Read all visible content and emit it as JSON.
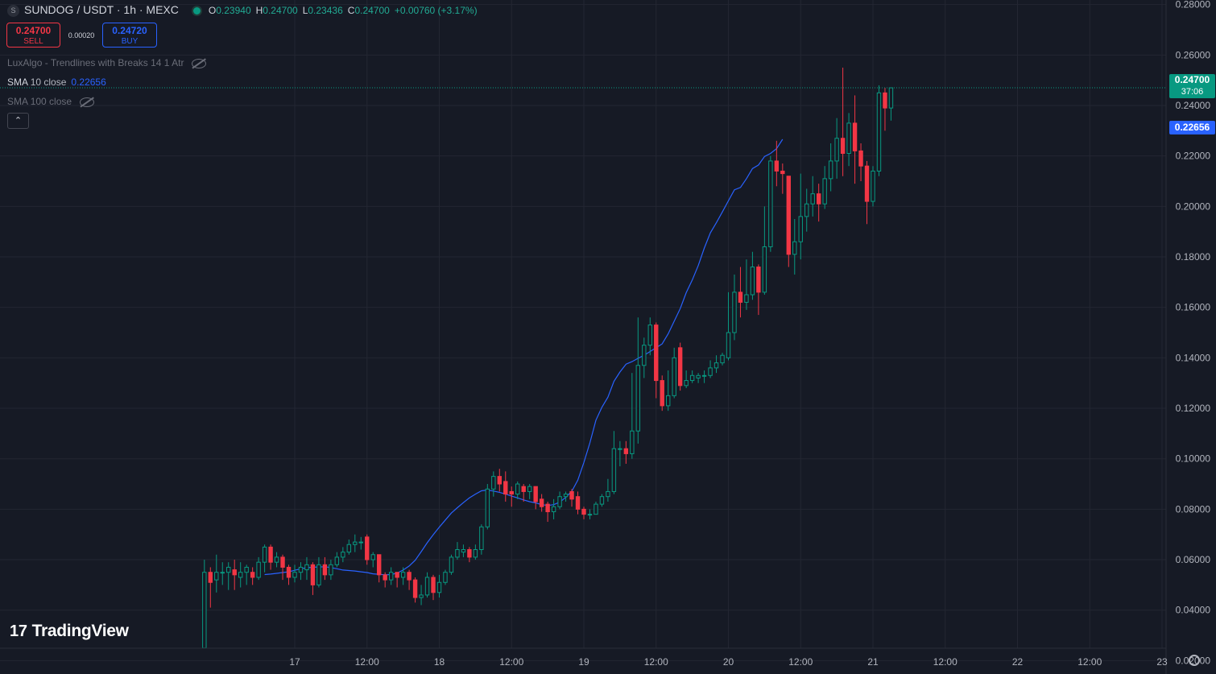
{
  "header": {
    "symbol_icon": "S",
    "title": "SUNDOG / USDT · 1h · MEXC",
    "status_color": "#089981",
    "ohlc": {
      "o_label": "O",
      "o": "0.23940",
      "h_label": "H",
      "h": "0.24700",
      "l_label": "L",
      "l": "0.23436",
      "c_label": "C",
      "c": "0.24700",
      "change": "+0.00760 (+3.17%)"
    }
  },
  "trade": {
    "sell_price": "0.24700",
    "sell_label": "SELL",
    "spread": "0.00020",
    "buy_price": "0.24720",
    "buy_label": "BUY"
  },
  "indicators": [
    {
      "name": "LuxAlgo - Trendlines with Breaks 14 1 Atr",
      "value": "",
      "hidden": true,
      "icon": "eye-off-icon"
    },
    {
      "name": "SMA",
      "params": "10 close",
      "value": "0.22656",
      "hidden": false
    },
    {
      "name": "SMA",
      "params": "100 close",
      "value": "",
      "hidden": true,
      "icon": "eye-off-icon"
    }
  ],
  "collapse_icon": "chevron-up-icon",
  "branding": {
    "logo_text": "TradingView",
    "logo_mark": "17"
  },
  "price_labels": {
    "last_price": "0.24700",
    "countdown": "37:06",
    "sma": "0.22656",
    "last_color": "#089981",
    "sma_color": "#2962ff"
  },
  "settings_icon": "gear-icon",
  "chart_data": {
    "type": "candlestick",
    "x_ticks": [
      "17",
      "12:00",
      "18",
      "12:00",
      "19",
      "12:00",
      "20",
      "12:00",
      "21",
      "12:00",
      "22",
      "12:00",
      "23"
    ],
    "y_ticks": [
      "0.28000",
      "0.26000",
      "0.24000",
      "0.22000",
      "0.20000",
      "0.18000",
      "0.16000",
      "0.14000",
      "0.12000",
      "0.10000",
      "0.08000",
      "0.06000",
      "0.04000",
      "0.02000"
    ],
    "ylim": [
      0.0147,
      0.2818
    ],
    "up_color": "#089981",
    "down_color": "#f23645",
    "sma_color": "#2962ff",
    "grid": true,
    "candles": [
      [
        0.025,
        0.055,
        0.025,
        0.06
      ],
      [
        0.055,
        0.051,
        0.041,
        0.057
      ],
      [
        0.052,
        0.055,
        0.047,
        0.062
      ],
      [
        0.055,
        0.055,
        0.05,
        0.059
      ],
      [
        0.055,
        0.057,
        0.048,
        0.059
      ],
      [
        0.056,
        0.054,
        0.048,
        0.06
      ],
      [
        0.053,
        0.055,
        0.049,
        0.059
      ],
      [
        0.055,
        0.057,
        0.05,
        0.058
      ],
      [
        0.055,
        0.053,
        0.05,
        0.057
      ],
      [
        0.053,
        0.059,
        0.052,
        0.061
      ],
      [
        0.059,
        0.065,
        0.055,
        0.066
      ],
      [
        0.065,
        0.059,
        0.056,
        0.066
      ],
      [
        0.059,
        0.061,
        0.057,
        0.063
      ],
      [
        0.061,
        0.057,
        0.052,
        0.062
      ],
      [
        0.057,
        0.053,
        0.05,
        0.058
      ],
      [
        0.053,
        0.055,
        0.051,
        0.058
      ],
      [
        0.055,
        0.057,
        0.052,
        0.059
      ],
      [
        0.056,
        0.058,
        0.052,
        0.061
      ],
      [
        0.058,
        0.05,
        0.046,
        0.059
      ],
      [
        0.05,
        0.058,
        0.049,
        0.061
      ],
      [
        0.058,
        0.054,
        0.052,
        0.061
      ],
      [
        0.054,
        0.058,
        0.052,
        0.06
      ],
      [
        0.058,
        0.061,
        0.057,
        0.063
      ],
      [
        0.061,
        0.063,
        0.059,
        0.065
      ],
      [
        0.063,
        0.066,
        0.062,
        0.068
      ],
      [
        0.066,
        0.067,
        0.063,
        0.07
      ],
      [
        0.067,
        0.067,
        0.064,
        0.069
      ],
      [
        0.069,
        0.06,
        0.058,
        0.07
      ],
      [
        0.06,
        0.062,
        0.057,
        0.063
      ],
      [
        0.062,
        0.054,
        0.051,
        0.062
      ],
      [
        0.054,
        0.052,
        0.049,
        0.055
      ],
      [
        0.052,
        0.055,
        0.05,
        0.057
      ],
      [
        0.055,
        0.053,
        0.049,
        0.055
      ],
      [
        0.053,
        0.055,
        0.05,
        0.057
      ],
      [
        0.055,
        0.052,
        0.048,
        0.056
      ],
      [
        0.052,
        0.045,
        0.043,
        0.053
      ],
      [
        0.045,
        0.046,
        0.042,
        0.05
      ],
      [
        0.046,
        0.053,
        0.045,
        0.055
      ],
      [
        0.053,
        0.047,
        0.044,
        0.054
      ],
      [
        0.047,
        0.051,
        0.045,
        0.054
      ],
      [
        0.051,
        0.055,
        0.05,
        0.056
      ],
      [
        0.055,
        0.061,
        0.054,
        0.062
      ],
      [
        0.061,
        0.064,
        0.06,
        0.067
      ],
      [
        0.063,
        0.064,
        0.061,
        0.066
      ],
      [
        0.064,
        0.061,
        0.059,
        0.065
      ],
      [
        0.061,
        0.064,
        0.06,
        0.066
      ],
      [
        0.064,
        0.073,
        0.062,
        0.074
      ],
      [
        0.073,
        0.088,
        0.072,
        0.09
      ],
      [
        0.088,
        0.093,
        0.085,
        0.095
      ],
      [
        0.093,
        0.09,
        0.087,
        0.096
      ],
      [
        0.091,
        0.086,
        0.083,
        0.095
      ],
      [
        0.087,
        0.086,
        0.081,
        0.089
      ],
      [
        0.086,
        0.09,
        0.084,
        0.091
      ],
      [
        0.089,
        0.087,
        0.083,
        0.09
      ],
      [
        0.087,
        0.089,
        0.084,
        0.09
      ],
      [
        0.089,
        0.083,
        0.08,
        0.089
      ],
      [
        0.084,
        0.081,
        0.079,
        0.086
      ],
      [
        0.082,
        0.079,
        0.075,
        0.083
      ],
      [
        0.079,
        0.081,
        0.076,
        0.084
      ],
      [
        0.081,
        0.085,
        0.08,
        0.087
      ],
      [
        0.085,
        0.086,
        0.083,
        0.087
      ],
      [
        0.087,
        0.084,
        0.081,
        0.088
      ],
      [
        0.085,
        0.08,
        0.078,
        0.087
      ],
      [
        0.08,
        0.078,
        0.076,
        0.081
      ],
      [
        0.078,
        0.078,
        0.076,
        0.08
      ],
      [
        0.078,
        0.082,
        0.078,
        0.083
      ],
      [
        0.082,
        0.085,
        0.081,
        0.086
      ],
      [
        0.085,
        0.087,
        0.083,
        0.092
      ],
      [
        0.087,
        0.104,
        0.086,
        0.111
      ],
      [
        0.104,
        0.104,
        0.097,
        0.107
      ],
      [
        0.104,
        0.102,
        0.098,
        0.107
      ],
      [
        0.102,
        0.111,
        0.1,
        0.134
      ],
      [
        0.111,
        0.137,
        0.106,
        0.156
      ],
      [
        0.137,
        0.145,
        0.132,
        0.148
      ],
      [
        0.145,
        0.153,
        0.141,
        0.156
      ],
      [
        0.153,
        0.131,
        0.124,
        0.154
      ],
      [
        0.131,
        0.121,
        0.119,
        0.133
      ],
      [
        0.121,
        0.125,
        0.119,
        0.135
      ],
      [
        0.125,
        0.14,
        0.124,
        0.144
      ],
      [
        0.144,
        0.129,
        0.127,
        0.146
      ],
      [
        0.129,
        0.131,
        0.128,
        0.135
      ],
      [
        0.131,
        0.133,
        0.13,
        0.135
      ],
      [
        0.132,
        0.133,
        0.13,
        0.134
      ],
      [
        0.133,
        0.133,
        0.13,
        0.135
      ],
      [
        0.133,
        0.136,
        0.132,
        0.139
      ],
      [
        0.136,
        0.138,
        0.134,
        0.141
      ],
      [
        0.138,
        0.141,
        0.137,
        0.142
      ],
      [
        0.14,
        0.15,
        0.139,
        0.166
      ],
      [
        0.15,
        0.166,
        0.147,
        0.173
      ],
      [
        0.166,
        0.162,
        0.156,
        0.176
      ],
      [
        0.162,
        0.165,
        0.159,
        0.179
      ],
      [
        0.165,
        0.176,
        0.163,
        0.182
      ],
      [
        0.176,
        0.166,
        0.157,
        0.177
      ],
      [
        0.166,
        0.184,
        0.165,
        0.2
      ],
      [
        0.184,
        0.218,
        0.182,
        0.22
      ],
      [
        0.218,
        0.214,
        0.208,
        0.226
      ],
      [
        0.214,
        0.213,
        0.205,
        0.217
      ],
      [
        0.212,
        0.181,
        0.176,
        0.212
      ],
      [
        0.181,
        0.186,
        0.173,
        0.195
      ],
      [
        0.186,
        0.196,
        0.179,
        0.213
      ],
      [
        0.196,
        0.201,
        0.19,
        0.207
      ],
      [
        0.201,
        0.205,
        0.196,
        0.212
      ],
      [
        0.205,
        0.201,
        0.194,
        0.209
      ],
      [
        0.201,
        0.211,
        0.199,
        0.216
      ],
      [
        0.211,
        0.218,
        0.206,
        0.225
      ],
      [
        0.218,
        0.227,
        0.211,
        0.235
      ],
      [
        0.227,
        0.221,
        0.212,
        0.255
      ],
      [
        0.221,
        0.233,
        0.216,
        0.237
      ],
      [
        0.233,
        0.222,
        0.209,
        0.244
      ],
      [
        0.222,
        0.216,
        0.21,
        0.225
      ],
      [
        0.216,
        0.202,
        0.193,
        0.218
      ],
      [
        0.202,
        0.214,
        0.2,
        0.216
      ],
      [
        0.214,
        0.245,
        0.212,
        0.248
      ],
      [
        0.245,
        0.239,
        0.23,
        0.247
      ],
      [
        0.239,
        0.247,
        0.234,
        0.247
      ]
    ],
    "sma_values": [
      0.0541,
      0.0543,
      0.0546,
      0.0549,
      0.0552,
      0.0558,
      0.0564,
      0.0568,
      0.057,
      0.0571,
      0.0572,
      0.0569,
      0.0564,
      0.0559,
      0.0557,
      0.0555,
      0.0552,
      0.0549,
      0.0544,
      0.0542,
      0.054,
      0.0541,
      0.0547,
      0.0559,
      0.0575,
      0.0598,
      0.0632,
      0.0667,
      0.0699,
      0.0729,
      0.0757,
      0.0785,
      0.0806,
      0.0826,
      0.0845,
      0.086,
      0.0873,
      0.0876,
      0.0872,
      0.0867,
      0.086,
      0.0852,
      0.0845,
      0.0837,
      0.083,
      0.0825,
      0.0818,
      0.0815,
      0.0818,
      0.0828,
      0.0847,
      0.0871,
      0.0915,
      0.0985,
      0.1063,
      0.1153,
      0.1204,
      0.1244,
      0.1307,
      0.1344,
      0.1375,
      0.1385,
      0.1398,
      0.141,
      0.1425,
      0.144,
      0.1455,
      0.1495,
      0.1545,
      0.1595,
      0.1658,
      0.1708,
      0.1766,
      0.1835,
      0.1895,
      0.1935,
      0.1978,
      0.2022,
      0.2066,
      0.2075,
      0.211,
      0.215,
      0.2164,
      0.2198,
      0.221,
      0.2229,
      0.2266
    ]
  }
}
